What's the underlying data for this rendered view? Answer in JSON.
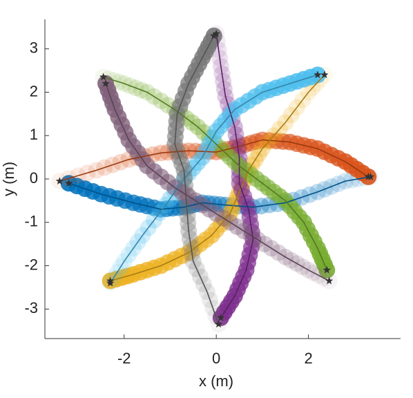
{
  "chart_data": {
    "type": "line",
    "xlabel": "x (m)",
    "ylabel": "y (m)",
    "xlim": [
      -3.72,
      4.0
    ],
    "ylim": [
      -3.68,
      3.68
    ],
    "xticks": [
      -2,
      0,
      2
    ],
    "yticks": [
      -3,
      -2,
      -1,
      0,
      1,
      2,
      3
    ],
    "series": [
      {
        "color": "#0072bd",
        "x": [
          -3.2,
          -2.5,
          -1.8,
          -1.2,
          -0.7,
          -0.3,
          0.2,
          0.8,
          1.5,
          2.2,
          2.8,
          3.35
        ],
        "y": [
          -0.1,
          -0.35,
          -0.55,
          -0.7,
          -0.65,
          -0.55,
          -0.6,
          -0.65,
          -0.55,
          -0.3,
          -0.05,
          0.05
        ]
      },
      {
        "color": "#d95319",
        "x": [
          3.3,
          2.8,
          2.2,
          1.6,
          1.0,
          0.5,
          0.0,
          -0.6,
          -1.2,
          -1.9,
          -2.6,
          -3.4
        ],
        "y": [
          0.05,
          0.4,
          0.7,
          0.85,
          0.9,
          0.75,
          0.62,
          0.65,
          0.6,
          0.45,
          0.2,
          -0.05
        ]
      },
      {
        "color": "#edb120",
        "x": [
          -2.3,
          -1.8,
          -1.2,
          -0.6,
          -0.1,
          0.3,
          0.5,
          0.7,
          1.0,
          1.5,
          2.0,
          2.35
        ],
        "y": [
          -2.35,
          -2.2,
          -2.0,
          -1.7,
          -1.3,
          -0.8,
          -0.3,
          0.2,
          0.7,
          1.3,
          2.0,
          2.4
        ]
      },
      {
        "color": "#7e2f8e",
        "x": [
          0.1,
          0.4,
          0.65,
          0.8,
          0.7,
          0.5,
          0.5,
          0.4,
          0.2,
          0.1,
          0.0
        ],
        "y": [
          -3.2,
          -2.7,
          -2.1,
          -1.4,
          -0.7,
          -0.1,
          0.5,
          1.2,
          1.9,
          2.6,
          3.35
        ]
      },
      {
        "color": "#77ac30",
        "x": [
          2.4,
          2.2,
          1.9,
          1.5,
          1.0,
          0.5,
          0.1,
          -0.4,
          -0.9,
          -1.5,
          -2.0,
          -2.45
        ],
        "y": [
          -2.1,
          -1.6,
          -1.0,
          -0.5,
          -0.1,
          0.3,
          0.7,
          1.2,
          1.6,
          2.0,
          2.2,
          2.35
        ]
      },
      {
        "color": "#4dbeee",
        "x": [
          2.2,
          1.6,
          1.0,
          0.4,
          0.0,
          -0.3,
          -0.7,
          -1.1,
          -1.6,
          -2.0,
          -2.3
        ],
        "y": [
          2.4,
          2.2,
          2.0,
          1.6,
          1.1,
          0.5,
          0.0,
          -0.6,
          -1.3,
          -1.9,
          -2.4
        ]
      },
      {
        "color": "#777777",
        "x": [
          -0.05,
          -0.3,
          -0.6,
          -0.85,
          -0.9,
          -0.7,
          -0.65,
          -0.6,
          -0.5,
          -0.2,
          0.05
        ],
        "y": [
          3.3,
          2.8,
          2.2,
          1.5,
          0.8,
          0.2,
          -0.5,
          -1.2,
          -1.9,
          -2.6,
          -3.35
        ]
      },
      {
        "color": "#80607a",
        "x": [
          -2.4,
          -2.2,
          -1.9,
          -1.5,
          -0.9,
          -0.3,
          0.3,
          0.9,
          1.5,
          2.0,
          2.45
        ],
        "y": [
          2.2,
          1.6,
          0.9,
          0.3,
          -0.2,
          -0.6,
          -1.0,
          -1.4,
          -1.8,
          -2.1,
          -2.35
        ]
      }
    ]
  }
}
